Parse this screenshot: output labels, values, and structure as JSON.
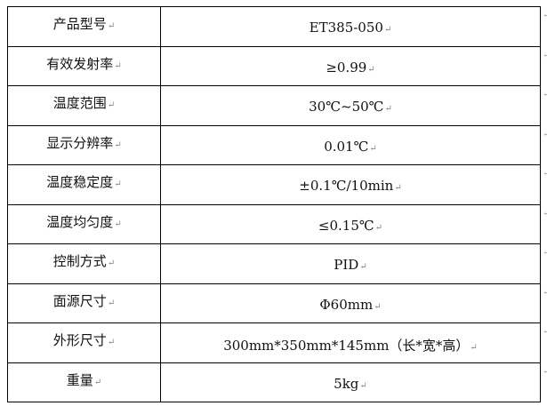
{
  "rows": [
    {
      "label": "产品型号",
      "value": "ET385-050"
    },
    {
      "label": "有效发射率",
      "value": "≥0.99"
    },
    {
      "label": "温度范围",
      "value": "30℃~50℃"
    },
    {
      "label": "显示分辨率",
      "value": "0.01℃"
    },
    {
      "label": "温度稳定度",
      "value": "±0.1℃/10min"
    },
    {
      "label": "温度均匀度",
      "value": "≤0.15℃"
    },
    {
      "label": "控制方式",
      "value": "PID"
    },
    {
      "label": "面源尺寸",
      "value": "Φ60mm"
    },
    {
      "label": "外形尺寸",
      "value": "300mm*350mm*145mm（长*宽*高）"
    },
    {
      "label": "重量",
      "value": "5kg"
    }
  ]
}
